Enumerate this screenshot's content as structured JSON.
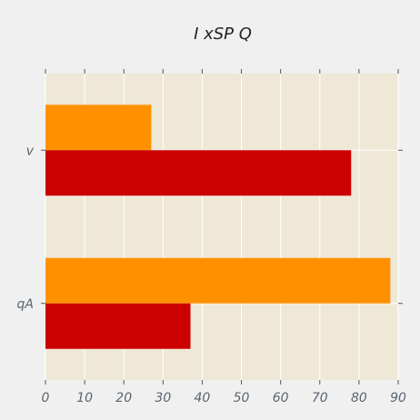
{
  "chart_data": {
    "type": "bar",
    "orientation": "horizontal",
    "title": "I xSP Q",
    "xlabel": "",
    "ylabel": "",
    "categories": [
      "v",
      "qA"
    ],
    "series": [
      {
        "color": "#ff9100",
        "values": [
          27,
          88
        ]
      },
      {
        "color": "#cc0000",
        "values": [
          78,
          37
        ]
      }
    ],
    "xlim": [
      0,
      90
    ],
    "xticks": [
      0,
      10,
      20,
      30,
      40,
      50,
      60,
      70,
      80,
      90
    ],
    "grid": true,
    "plot_background": "#efe8d6",
    "page_background": "#f0f0f0",
    "grid_color": "#ffffff"
  }
}
